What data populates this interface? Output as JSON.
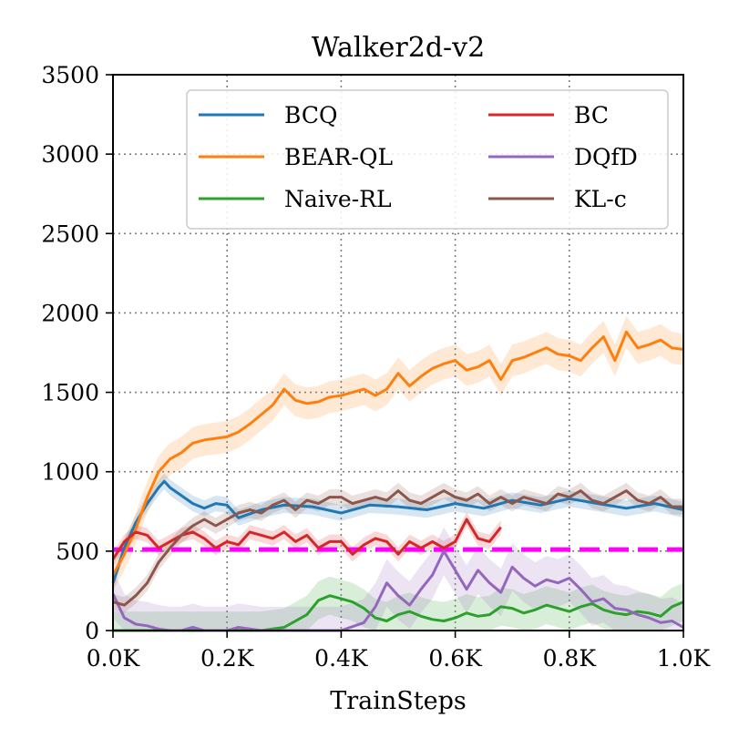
{
  "chart_data": {
    "type": "line",
    "title": "Walker2d-v2",
    "xlabel": "TrainSteps",
    "ylabel": "",
    "xlim": [
      0,
      1.0
    ],
    "ylim": [
      0,
      3500
    ],
    "x_ticks": [
      0,
      0.2,
      0.4,
      0.6,
      0.8,
      1.0
    ],
    "x_tick_labels": [
      "0.0K",
      "0.2K",
      "0.4K",
      "0.6K",
      "0.8K",
      "1.0K"
    ],
    "y_ticks": [
      0,
      500,
      1000,
      1500,
      2000,
      2500,
      3000,
      3500
    ],
    "y_tick_labels": [
      "0",
      "500",
      "1000",
      "1500",
      "2000",
      "2500",
      "3000",
      "3500"
    ],
    "grid": true,
    "legend_position": "top-right",
    "reference_line": {
      "label": "",
      "value": 510,
      "color": "#ff00ff",
      "style": "dashed"
    },
    "series": [
      {
        "name": "BCQ",
        "color": "#1f77b4",
        "band": 50,
        "x": [
          0,
          0.02,
          0.04,
          0.06,
          0.08,
          0.09,
          0.1,
          0.12,
          0.14,
          0.16,
          0.18,
          0.2,
          0.22,
          0.26,
          0.3,
          0.35,
          0.4,
          0.45,
          0.5,
          0.55,
          0.6,
          0.65,
          0.7,
          0.75,
          0.8,
          0.85,
          0.9,
          0.95,
          1.0
        ],
        "y": [
          300,
          520,
          680,
          800,
          900,
          940,
          900,
          850,
          800,
          770,
          800,
          790,
          710,
          760,
          790,
          780,
          740,
          790,
          780,
          760,
          800,
          770,
          820,
          790,
          830,
          800,
          770,
          800,
          760
        ]
      },
      {
        "name": "BEAR-QL",
        "color": "#ff7f0e",
        "band": 100,
        "x": [
          0,
          0.02,
          0.04,
          0.06,
          0.08,
          0.1,
          0.12,
          0.14,
          0.16,
          0.18,
          0.2,
          0.22,
          0.24,
          0.26,
          0.28,
          0.3,
          0.32,
          0.34,
          0.36,
          0.38,
          0.4,
          0.42,
          0.44,
          0.46,
          0.48,
          0.5,
          0.52,
          0.54,
          0.56,
          0.58,
          0.6,
          0.62,
          0.64,
          0.66,
          0.68,
          0.7,
          0.72,
          0.74,
          0.76,
          0.78,
          0.8,
          0.82,
          0.84,
          0.86,
          0.88,
          0.9,
          0.92,
          0.94,
          0.96,
          0.98,
          1.0
        ],
        "y": [
          350,
          480,
          640,
          840,
          1000,
          1080,
          1120,
          1180,
          1200,
          1210,
          1220,
          1250,
          1300,
          1360,
          1420,
          1520,
          1450,
          1430,
          1440,
          1470,
          1480,
          1500,
          1520,
          1480,
          1520,
          1620,
          1540,
          1600,
          1650,
          1680,
          1700,
          1640,
          1660,
          1700,
          1580,
          1700,
          1720,
          1750,
          1780,
          1740,
          1730,
          1700,
          1780,
          1850,
          1700,
          1880,
          1780,
          1800,
          1830,
          1780,
          1770
        ]
      },
      {
        "name": "Naive-RL",
        "color": "#2ca02c",
        "band": 120,
        "x": [
          0,
          0.1,
          0.2,
          0.26,
          0.3,
          0.34,
          0.36,
          0.38,
          0.4,
          0.42,
          0.44,
          0.46,
          0.48,
          0.5,
          0.52,
          0.54,
          0.56,
          0.58,
          0.6,
          0.62,
          0.64,
          0.66,
          0.68,
          0.7,
          0.72,
          0.74,
          0.76,
          0.78,
          0.8,
          0.82,
          0.84,
          0.86,
          0.88,
          0.9,
          0.92,
          0.94,
          0.96,
          0.98,
          1.0
        ],
        "y": [
          0,
          0,
          0,
          0,
          20,
          100,
          190,
          220,
          200,
          180,
          140,
          80,
          60,
          100,
          120,
          90,
          70,
          60,
          80,
          110,
          90,
          100,
          150,
          140,
          110,
          130,
          160,
          140,
          120,
          150,
          170,
          130,
          110,
          100,
          120,
          110,
          90,
          150,
          180
        ]
      },
      {
        "name": "BC",
        "color": "#d62728",
        "band": 45,
        "x": [
          0,
          0.02,
          0.04,
          0.06,
          0.08,
          0.1,
          0.12,
          0.14,
          0.16,
          0.18,
          0.2,
          0.22,
          0.24,
          0.26,
          0.28,
          0.3,
          0.32,
          0.34,
          0.36,
          0.38,
          0.4,
          0.42,
          0.44,
          0.46,
          0.48,
          0.5,
          0.52,
          0.54,
          0.56,
          0.58,
          0.6,
          0.62,
          0.64,
          0.66,
          0.68
        ],
        "y": [
          450,
          560,
          620,
          600,
          520,
          560,
          600,
          620,
          580,
          520,
          560,
          540,
          620,
          600,
          580,
          620,
          560,
          600,
          520,
          560,
          560,
          480,
          540,
          580,
          560,
          480,
          560,
          520,
          560,
          520,
          560,
          700,
          580,
          560,
          650
        ]
      },
      {
        "name": "DQfD",
        "color": "#9467bd",
        "band": 150,
        "x": [
          0,
          0.02,
          0.04,
          0.06,
          0.08,
          0.1,
          0.12,
          0.14,
          0.16,
          0.18,
          0.2,
          0.22,
          0.26,
          0.3,
          0.4,
          0.44,
          0.46,
          0.48,
          0.5,
          0.52,
          0.54,
          0.56,
          0.58,
          0.6,
          0.62,
          0.64,
          0.66,
          0.68,
          0.7,
          0.72,
          0.74,
          0.76,
          0.78,
          0.8,
          0.82,
          0.84,
          0.86,
          0.88,
          0.9,
          0.92,
          0.94,
          0.96,
          0.98,
          1.0
        ],
        "y": [
          230,
          80,
          40,
          30,
          10,
          0,
          0,
          20,
          0,
          0,
          0,
          20,
          0,
          0,
          0,
          50,
          150,
          300,
          220,
          160,
          260,
          350,
          500,
          380,
          260,
          380,
          300,
          240,
          400,
          330,
          280,
          320,
          300,
          330,
          260,
          180,
          200,
          140,
          130,
          100,
          80,
          50,
          60,
          20
        ]
      },
      {
        "name": "KL-c",
        "color": "#8c564b",
        "band": 50,
        "x": [
          0,
          0.02,
          0.04,
          0.06,
          0.08,
          0.1,
          0.12,
          0.14,
          0.16,
          0.18,
          0.2,
          0.22,
          0.24,
          0.26,
          0.28,
          0.3,
          0.32,
          0.34,
          0.36,
          0.38,
          0.4,
          0.42,
          0.44,
          0.46,
          0.48,
          0.5,
          0.52,
          0.54,
          0.56,
          0.58,
          0.6,
          0.62,
          0.64,
          0.66,
          0.68,
          0.7,
          0.72,
          0.74,
          0.76,
          0.78,
          0.8,
          0.82,
          0.84,
          0.86,
          0.88,
          0.9,
          0.92,
          0.94,
          0.96,
          0.98,
          1.0
        ],
        "y": [
          180,
          160,
          220,
          300,
          430,
          520,
          600,
          660,
          700,
          660,
          700,
          740,
          760,
          740,
          790,
          820,
          760,
          820,
          800,
          840,
          840,
          800,
          820,
          840,
          820,
          880,
          820,
          800,
          840,
          880,
          840,
          820,
          860,
          800,
          840,
          800,
          840,
          820,
          800,
          860,
          840,
          880,
          820,
          800,
          840,
          880,
          820,
          800,
          840,
          780,
          780
        ]
      }
    ]
  }
}
